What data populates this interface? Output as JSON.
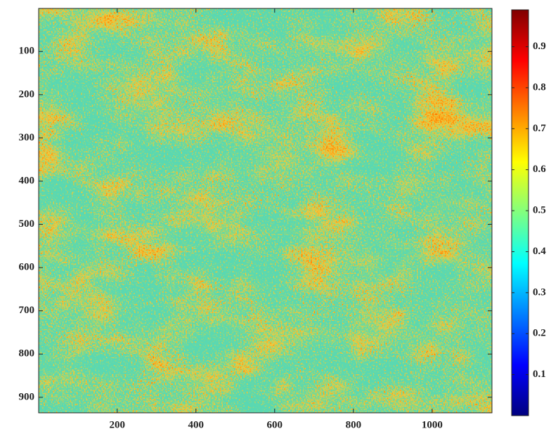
{
  "chart_data": {
    "type": "heatmap",
    "colormap": "jet",
    "xlim": [
      0.5,
      1152
    ],
    "ylim": [
      0.5,
      936
    ],
    "y_reversed": true,
    "xticks": [
      200,
      400,
      600,
      800,
      1000
    ],
    "yticks": [
      100,
      200,
      300,
      400,
      500,
      600,
      700,
      800,
      900
    ],
    "clim": [
      0,
      0.99
    ],
    "cticks": [
      0.1,
      0.2,
      0.3,
      0.4,
      0.5,
      0.6,
      0.7,
      0.8,
      0.9
    ]
  }
}
